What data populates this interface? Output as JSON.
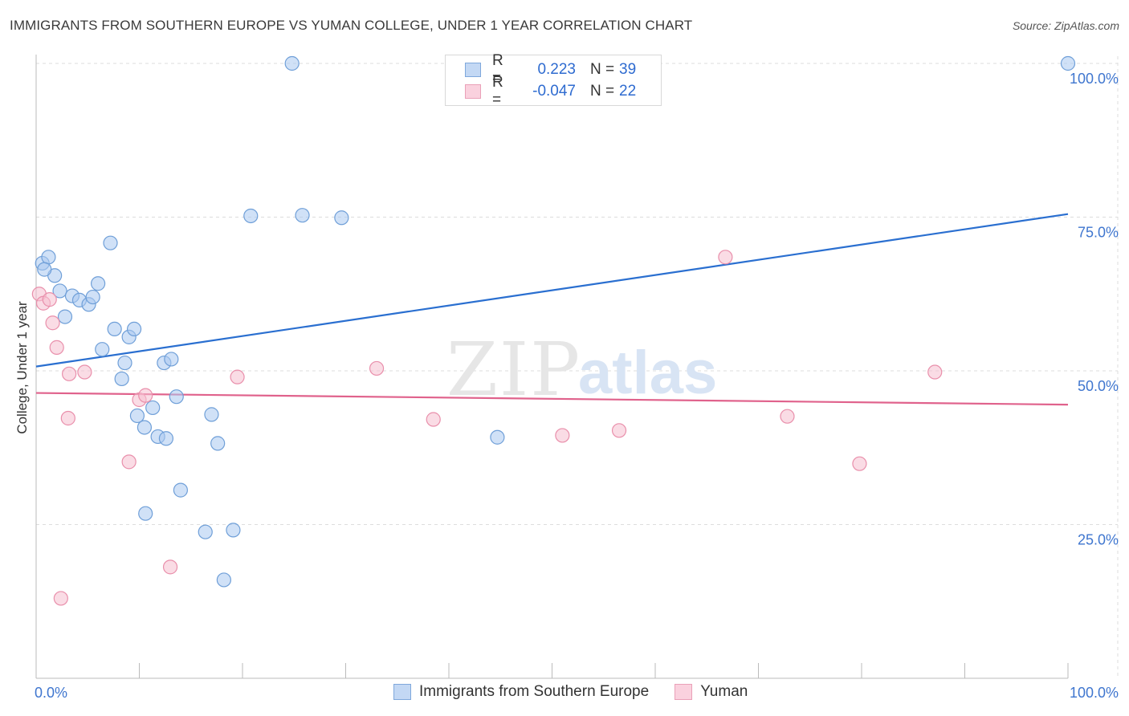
{
  "header": {
    "title": "IMMIGRANTS FROM SOUTHERN EUROPE VS YUMAN COLLEGE, UNDER 1 YEAR CORRELATION CHART",
    "source": "Source: ZipAtlas.com"
  },
  "legend": {
    "r_label": "R =",
    "n_label": "N =",
    "series1": {
      "r": "0.223",
      "n": "39"
    },
    "series2": {
      "r": "-0.047",
      "n": "22"
    }
  },
  "bottom_legend": {
    "series1": "Immigrants from Southern Europe",
    "series2": "Yuman"
  },
  "watermark": {
    "zip": "ZIP",
    "atlas": "atlas"
  },
  "colors": {
    "series1_fill": "#a9c8f0",
    "series1_stroke": "#6f9fd8",
    "series1_line": "#2a6fd0",
    "series2_fill": "#f6bfd0",
    "series2_stroke": "#e98fab",
    "series2_line": "#e0628c",
    "tick_label": "#3f76cf",
    "grid": "#dddddd"
  },
  "chart_data": {
    "type": "scatter",
    "title": "IMMIGRANTS FROM SOUTHERN EUROPE VS YUMAN COLLEGE, UNDER 1 YEAR CORRELATION CHART",
    "xlabel": "",
    "ylabel": "College, Under 1 year",
    "xlim": [
      0,
      100
    ],
    "ylim": [
      0,
      102
    ],
    "x_tick_labels": [
      "0.0%",
      "100.0%"
    ],
    "y_ticks": [
      25,
      50,
      75,
      100
    ],
    "y_tick_labels": [
      "25.0%",
      "50.0%",
      "75.0%",
      "100.0%"
    ],
    "grid": true,
    "series": [
      {
        "name": "Immigrants from Southern Europe",
        "points": [
          [
            0.6,
            67.5
          ],
          [
            1.2,
            68.5
          ],
          [
            1.8,
            65.5
          ],
          [
            2.3,
            63
          ],
          [
            3.5,
            62.2
          ],
          [
            4.2,
            61.5
          ],
          [
            5.1,
            60.8
          ],
          [
            5.5,
            62
          ],
          [
            6.0,
            64.2
          ],
          [
            2.8,
            58.8
          ],
          [
            6.4,
            53.5
          ],
          [
            7.2,
            70.8
          ],
          [
            7.6,
            56.8
          ],
          [
            8.3,
            48.7
          ],
          [
            8.6,
            51.3
          ],
          [
            9.0,
            55.5
          ],
          [
            9.5,
            56.8
          ],
          [
            9.8,
            42.7
          ],
          [
            10.5,
            40.8
          ],
          [
            11.3,
            44
          ],
          [
            11.8,
            39.3
          ],
          [
            12.4,
            51.3
          ],
          [
            12.6,
            39
          ],
          [
            13.1,
            51.9
          ],
          [
            13.6,
            45.8
          ],
          [
            14.0,
            30.6
          ],
          [
            16.4,
            23.8
          ],
          [
            17.0,
            42.9
          ],
          [
            17.6,
            38.2
          ],
          [
            18.2,
            16
          ],
          [
            19.1,
            24.1
          ],
          [
            20.8,
            75.2
          ],
          [
            24.8,
            100
          ],
          [
            25.8,
            75.3
          ],
          [
            29.6,
            74.9
          ],
          [
            10.6,
            26.8
          ],
          [
            0.8,
            66.5
          ],
          [
            44.7,
            39.2
          ],
          [
            100,
            100
          ]
        ]
      },
      {
        "name": "Yuman",
        "points": [
          [
            0.3,
            62.5
          ],
          [
            0.7,
            61
          ],
          [
            1.3,
            61.6
          ],
          [
            1.6,
            57.8
          ],
          [
            2.0,
            53.8
          ],
          [
            2.4,
            13
          ],
          [
            3.1,
            42.3
          ],
          [
            3.2,
            49.5
          ],
          [
            4.7,
            49.8
          ],
          [
            9.0,
            35.2
          ],
          [
            10.0,
            45.3
          ],
          [
            10.6,
            46
          ],
          [
            13.0,
            18.1
          ],
          [
            19.5,
            49
          ],
          [
            33.0,
            50.4
          ],
          [
            38.5,
            42.1
          ],
          [
            51.0,
            39.5
          ],
          [
            56.5,
            40.3
          ],
          [
            66.8,
            68.5
          ],
          [
            72.8,
            42.6
          ],
          [
            79.8,
            34.9
          ],
          [
            87.1,
            49.8
          ]
        ]
      }
    ],
    "trendlines": [
      {
        "series": "Immigrants from Southern Europe",
        "x": [
          0,
          100
        ],
        "y": [
          50.7,
          75.5
        ]
      },
      {
        "series": "Yuman",
        "x": [
          0,
          100
        ],
        "y": [
          46.4,
          44.5
        ]
      }
    ]
  }
}
